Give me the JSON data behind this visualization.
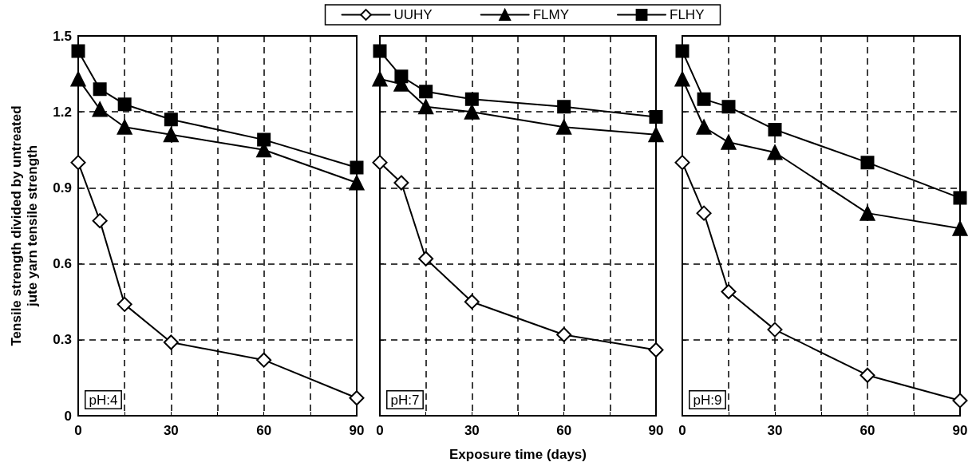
{
  "chart_data": [
    {
      "type": "line",
      "ylabel": "Tensile strength divided by untreated\njute yarn tensile strength",
      "annotations": [
        "pH:4"
      ],
      "x": [
        0,
        7,
        15,
        30,
        60,
        90
      ],
      "xlim": [
        0,
        90
      ],
      "xticks": [
        0,
        {
          "value": 15,
          "label": null
        },
        30,
        {
          "value": 45,
          "label": null
        },
        60,
        {
          "value": 75,
          "label": null
        },
        90
      ],
      "ylim": [
        0,
        1.5
      ],
      "yticks": [
        0,
        0.3,
        0.6,
        0.9,
        1.2,
        1.5
      ],
      "grid": true,
      "legend": false,
      "line_style": "solid",
      "series": [
        {
          "color": "#000000",
          "marker": "diamond",
          "values": [
            1.0,
            0.77,
            0.44,
            0.29,
            0.22,
            0.07
          ]
        },
        {
          "color": "#000000",
          "marker": "triangle",
          "values": [
            1.33,
            1.21,
            1.14,
            1.11,
            1.05,
            0.92
          ]
        },
        {
          "color": "#000000",
          "marker": "square",
          "values": [
            1.44,
            1.29,
            1.23,
            1.17,
            1.09,
            0.98
          ]
        }
      ]
    },
    {
      "type": "line",
      "xlabel": "Exposure time (days)",
      "annotations": [
        "pH:7"
      ],
      "x": [
        0,
        7,
        15,
        30,
        60,
        90
      ],
      "xlim": [
        0,
        90
      ],
      "xticks": [
        0,
        {
          "value": 15,
          "label": null
        },
        30,
        {
          "value": 45,
          "label": null
        },
        60,
        {
          "value": 75,
          "label": null
        },
        90
      ],
      "ylim": [
        0,
        1.5
      ],
      "yticks": [
        0,
        0.3,
        0.6,
        0.9,
        1.2,
        1.5
      ],
      "tick_labels": "x",
      "grid": true,
      "legend": "top",
      "line_style": "solid",
      "series": [
        {
          "name": "UUHY",
          "color": "#000000",
          "marker": "diamond",
          "values": [
            1.0,
            0.92,
            0.62,
            0.45,
            0.32,
            0.26
          ]
        },
        {
          "name": "FLMY",
          "color": "#000000",
          "marker": "triangle",
          "values": [
            1.33,
            1.31,
            1.22,
            1.2,
            1.14,
            1.11
          ]
        },
        {
          "name": "FLHY",
          "color": "#000000",
          "marker": "square",
          "values": [
            1.44,
            1.34,
            1.28,
            1.25,
            1.22,
            1.18
          ]
        }
      ]
    },
    {
      "type": "line",
      "annotations": [
        "pH:9"
      ],
      "x": [
        0,
        7,
        15,
        30,
        60,
        90
      ],
      "xlim": [
        0,
        90
      ],
      "xticks": [
        0,
        {
          "value": 15,
          "label": null
        },
        30,
        {
          "value": 45,
          "label": null
        },
        60,
        {
          "value": 75,
          "label": null
        },
        90
      ],
      "ylim": [
        0,
        1.5
      ],
      "yticks": [
        0,
        0.3,
        0.6,
        0.9,
        1.2,
        1.5
      ],
      "tick_labels": "x",
      "grid": true,
      "legend": false,
      "line_style": "solid",
      "series": [
        {
          "color": "#000000",
          "marker": "diamond",
          "values": [
            1.0,
            0.8,
            0.49,
            0.34,
            0.16,
            0.06
          ]
        },
        {
          "color": "#000000",
          "marker": "triangle",
          "values": [
            1.33,
            1.14,
            1.08,
            1.04,
            0.8,
            0.74
          ]
        },
        {
          "color": "#000000",
          "marker": "square",
          "values": [
            1.44,
            1.25,
            1.22,
            1.13,
            1.0,
            0.86
          ]
        }
      ]
    }
  ]
}
